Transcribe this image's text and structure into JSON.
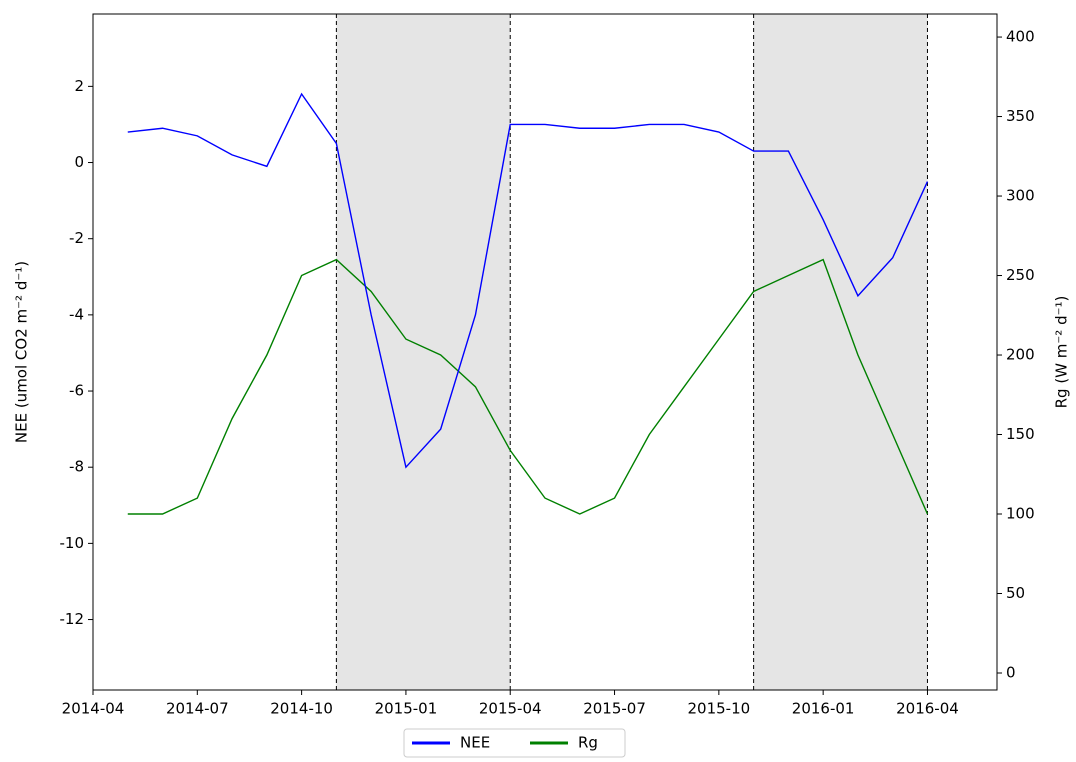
{
  "chart_data": {
    "type": "line",
    "x": [
      "2014-05",
      "2014-06",
      "2014-07",
      "2014-08",
      "2014-09",
      "2014-10",
      "2014-11",
      "2014-12",
      "2015-01",
      "2015-02",
      "2015-03",
      "2015-04",
      "2015-05",
      "2015-06",
      "2015-07",
      "2015-08",
      "2015-09",
      "2015-10",
      "2015-11",
      "2015-12",
      "2016-01",
      "2016-02",
      "2016-03",
      "2016-04"
    ],
    "series": [
      {
        "name": "NEE",
        "color": "#0000ff",
        "axis": "y",
        "values": [
          0.8,
          0.9,
          0.7,
          0.2,
          -0.1,
          1.8,
          0.5,
          -4,
          -8,
          -7,
          -4,
          1.0,
          1.0,
          0.9,
          0.9,
          1.0,
          1.0,
          0.8,
          0.3,
          0.3,
          -1.5,
          -3.5,
          -2.5,
          -0.5
        ]
      },
      {
        "name": "Rg",
        "color": "#008000",
        "axis": "y2",
        "values": [
          100,
          100,
          110,
          160,
          200,
          250,
          260,
          240,
          210,
          200,
          180,
          140,
          110,
          100,
          110,
          150,
          180,
          210,
          240,
          250,
          260,
          200,
          150,
          100
        ]
      }
    ],
    "xlim": [
      "2014-04",
      "2016-06"
    ],
    "xticks": [
      "2014-04",
      "2014-07",
      "2014-10",
      "2015-01",
      "2015-04",
      "2015-07",
      "2015-10",
      "2016-01",
      "2016-04"
    ],
    "ylim": [
      -13.85,
      3.9
    ],
    "yticks": [
      2,
      0,
      -2,
      -4,
      -6,
      -8,
      -10,
      -12
    ],
    "y2lim": [
      -10.7,
      414.5
    ],
    "y2ticks": [
      400,
      350,
      300,
      250,
      200,
      150,
      100,
      50,
      0
    ],
    "ylabel": "NEE (umol CO2 m⁻² d⁻¹)",
    "y2label": "Rg (W m⁻² d⁻¹)",
    "shaded_spans": [
      [
        "2014-11",
        "2015-04"
      ],
      [
        "2015-11",
        "2016-04"
      ]
    ],
    "legend": "bottom"
  }
}
